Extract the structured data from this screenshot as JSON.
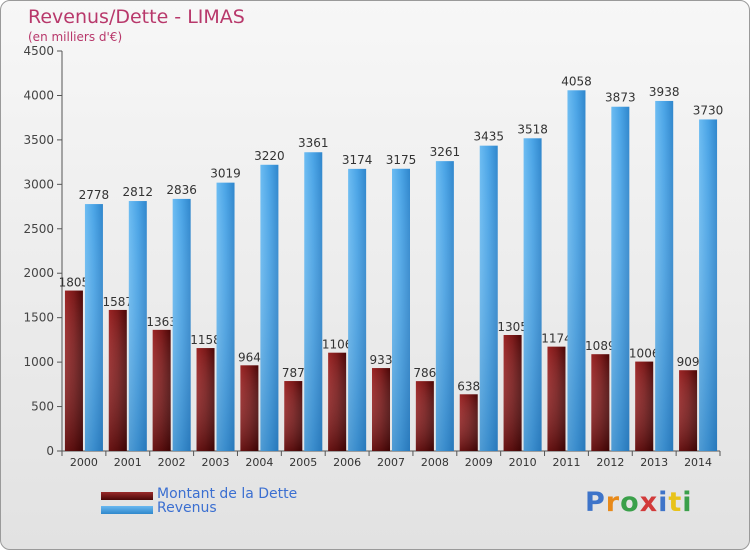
{
  "header": {
    "title": "Revenus/Dette - LIMAS",
    "subtitle": "(en milliers d'€)"
  },
  "colors": {
    "dette": "#7a1a1a",
    "revenus": "#4aa0e0",
    "title": "#b8386b",
    "legend_text": "#3b6fd1"
  },
  "chart_data": {
    "type": "bar",
    "title": "Revenus/Dette - LIMAS",
    "subtitle": "(en milliers d'€)",
    "categories": [
      "2000",
      "2001",
      "2002",
      "2003",
      "2004",
      "2005",
      "2006",
      "2007",
      "2008",
      "2009",
      "2010",
      "2011",
      "2012",
      "2013",
      "2014"
    ],
    "series": [
      {
        "name": "Montant de la Dette",
        "values": [
          1805,
          1587,
          1363,
          1158,
          964,
          787,
          1106,
          933,
          786,
          638,
          1305,
          1174,
          1089,
          1006,
          909
        ],
        "labels": [
          "1805",
          "1587",
          "1363",
          "1158",
          "964",
          "787",
          "1106",
          "933",
          "786",
          "638",
          "1305",
          "1174",
          "1089",
          "1006",
          "909"
        ]
      },
      {
        "name": "Revenus",
        "values": [
          2778,
          2812,
          2836,
          3019,
          3220,
          3361,
          3174,
          3175,
          3261,
          3435,
          3518,
          4058,
          3873,
          3938,
          3730
        ],
        "labels": [
          "2778",
          "2812",
          "2836",
          "3019",
          "3220",
          "3361",
          "3174",
          "3175",
          "3261",
          "3435",
          "3518",
          "4058",
          "3873",
          "3938",
          "3730"
        ]
      }
    ],
    "ylim": [
      0,
      4500
    ],
    "yticks": [
      0,
      500,
      1000,
      1500,
      2000,
      2500,
      3000,
      3500,
      4000,
      4500
    ],
    "grid": false,
    "legend_position": "bottom-left"
  },
  "legend": [
    {
      "label": "Montant de la Dette"
    },
    {
      "label": "Revenus"
    }
  ],
  "logo": {
    "letters": [
      "P",
      "r",
      "o",
      "x",
      "i",
      "t",
      "i"
    ]
  }
}
